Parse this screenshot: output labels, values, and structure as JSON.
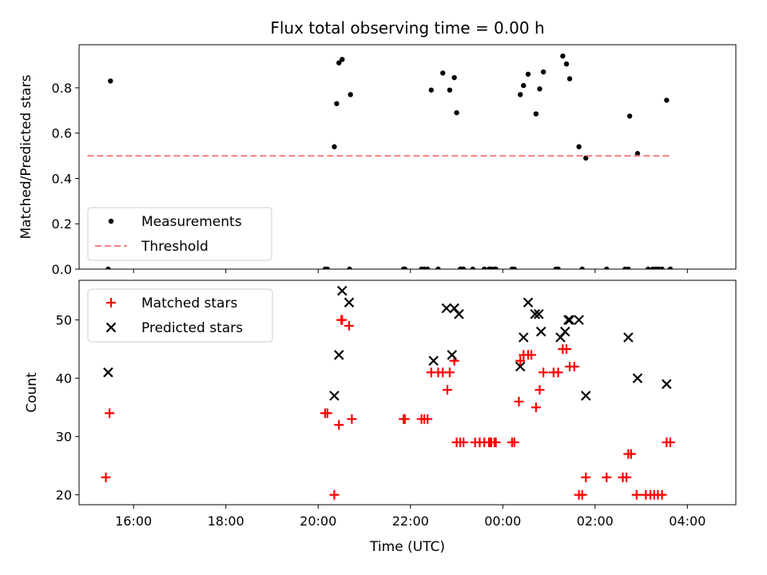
{
  "chart_data": {
    "title": "Flux total observing time = 0.00 h",
    "xlabel": "Time (UTC)",
    "x_unit": "hours since 00:00 UTC (negative = previous day)",
    "xlim": [
      -9.18,
      5.05
    ],
    "xticks": [
      {
        "value": -8,
        "label": "16:00"
      },
      {
        "value": -6,
        "label": "18:00"
      },
      {
        "value": -4,
        "label": "20:00"
      },
      {
        "value": -2,
        "label": "22:00"
      },
      {
        "value": 0,
        "label": "00:00"
      },
      {
        "value": 2,
        "label": "02:00"
      },
      {
        "value": 4,
        "label": "04:00"
      }
    ],
    "panels": [
      {
        "type": "scatter",
        "ylabel": "Matched/Predicted stars",
        "ylim": [
          0,
          0.99
        ],
        "yticks": [
          0.0,
          0.2,
          0.4,
          0.6,
          0.8
        ],
        "ytick_labels": [
          "0.0",
          "0.2",
          "0.4",
          "0.6",
          "0.8"
        ],
        "legend": {
          "position": "lower-left",
          "entries": [
            "Measurements",
            "Threshold"
          ]
        },
        "series": [
          {
            "name": "Measurements",
            "marker": "dot",
            "color": "#000000",
            "x": [
              -8.55,
              -8.5,
              -3.85,
              -3.8,
              -3.65,
              -3.6,
              -3.55,
              -3.48,
              -3.3,
              -3.32,
              -2.15,
              -2.12,
              -1.76,
              -1.7,
              -1.63,
              -1.55,
              -1.4,
              -1.3,
              -1.15,
              -1.05,
              -1.0,
              -0.92,
              -0.85,
              -0.9,
              -0.65,
              -0.4,
              -0.3,
              -0.28,
              -0.25,
              -0.18,
              -0.15,
              0.2,
              0.25,
              0.38,
              0.45,
              0.55,
              0.72,
              0.8,
              0.88,
              1.15,
              1.2,
              1.3,
              1.38,
              1.45,
              1.65,
              1.72,
              1.8,
              2.25,
              2.65,
              2.72,
              2.75,
              2.92,
              3.15,
              3.25,
              3.32,
              3.38,
              3.45,
              3.55,
              3.63
            ],
            "y": [
              0.0,
              0.83,
              0.0,
              0.0,
              0.54,
              0.73,
              0.91,
              0.925,
              0.77,
              0.0,
              0.0,
              0.0,
              0.0,
              0.0,
              0.0,
              0.79,
              0.0,
              0.865,
              0.79,
              0.845,
              0.69,
              0.0,
              0.0,
              0.0,
              0.0,
              0.0,
              0.0,
              0.0,
              0.0,
              0.0,
              0.0,
              0.0,
              0.0,
              0.77,
              0.81,
              0.86,
              0.685,
              0.795,
              0.87,
              0.0,
              0.0,
              0.94,
              0.905,
              0.84,
              0.54,
              0.0,
              0.49,
              0.0,
              0.0,
              0.0,
              0.675,
              0.51,
              0.0,
              0.0,
              0.0,
              0.0,
              0.0,
              0.745,
              0.0
            ]
          },
          {
            "name": "Threshold",
            "style": "dashed-line",
            "color": "#f08080",
            "x": [
              -9.0,
              3.65
            ],
            "y": [
              0.5,
              0.5
            ]
          }
        ]
      },
      {
        "type": "scatter",
        "ylabel": "Count",
        "ylim": [
          18.3,
          56.8
        ],
        "yticks": [
          20,
          30,
          40,
          50
        ],
        "ytick_labels": [
          "20",
          "30",
          "40",
          "50"
        ],
        "legend": {
          "position": "upper-left",
          "entries": [
            "Matched stars",
            "Predicted stars"
          ]
        },
        "series": [
          {
            "name": "Matched stars",
            "marker": "plus",
            "color": "#ff0000",
            "x": [
              -8.6,
              -8.52,
              -3.85,
              -3.8,
              -3.65,
              -3.55,
              -3.5,
              -3.48,
              -3.33,
              -3.27,
              -2.15,
              -2.12,
              -1.76,
              -1.7,
              -1.63,
              -1.55,
              -1.4,
              -1.3,
              -1.2,
              -1.15,
              -1.05,
              -1.0,
              -0.92,
              -0.85,
              -0.6,
              -0.5,
              -0.4,
              -0.3,
              -0.28,
              -0.25,
              -0.18,
              -0.15,
              0.2,
              0.25,
              0.35,
              0.38,
              0.45,
              0.55,
              0.62,
              0.72,
              0.8,
              0.88,
              1.1,
              1.2,
              1.3,
              1.38,
              1.45,
              1.55,
              1.65,
              1.72,
              1.8,
              2.25,
              2.6,
              2.68,
              2.72,
              2.78,
              2.9,
              3.1,
              3.2,
              3.28,
              3.36,
              3.45,
              3.55,
              3.63
            ],
            "y": [
              23,
              34,
              34,
              34,
              20,
              32,
              50,
              50,
              49,
              33,
              33,
              33,
              33,
              33,
              33,
              41,
              41,
              41,
              38,
              41,
              43,
              29,
              29,
              29,
              29,
              29,
              29,
              29,
              29,
              29,
              29,
              29,
              29,
              29,
              36,
              43,
              44,
              44,
              44,
              35,
              38,
              41,
              41,
              41,
              45,
              45,
              42,
              42,
              20,
              20,
              23,
              23,
              23,
              23,
              27,
              27,
              20,
              20,
              20,
              20,
              20,
              20,
              29,
              29
            ]
          },
          {
            "name": "Predicted stars",
            "marker": "x",
            "color": "#000000",
            "x": [
              -8.55,
              -3.65,
              -3.55,
              -3.48,
              -3.33,
              -1.5,
              -1.22,
              -1.05,
              -1.1,
              -0.95,
              0.38,
              0.45,
              0.55,
              0.7,
              0.78,
              0.83,
              1.25,
              1.35,
              1.42,
              1.45,
              1.65,
              1.8,
              2.72,
              2.92,
              3.55
            ],
            "y": [
              41,
              37,
              44,
              55,
              53,
              43,
              52,
              52,
              44,
              51,
              42,
              47,
              53,
              51,
              51,
              48,
              47,
              48,
              50,
              50,
              50,
              37,
              47,
              40,
              39
            ]
          }
        ]
      }
    ]
  }
}
